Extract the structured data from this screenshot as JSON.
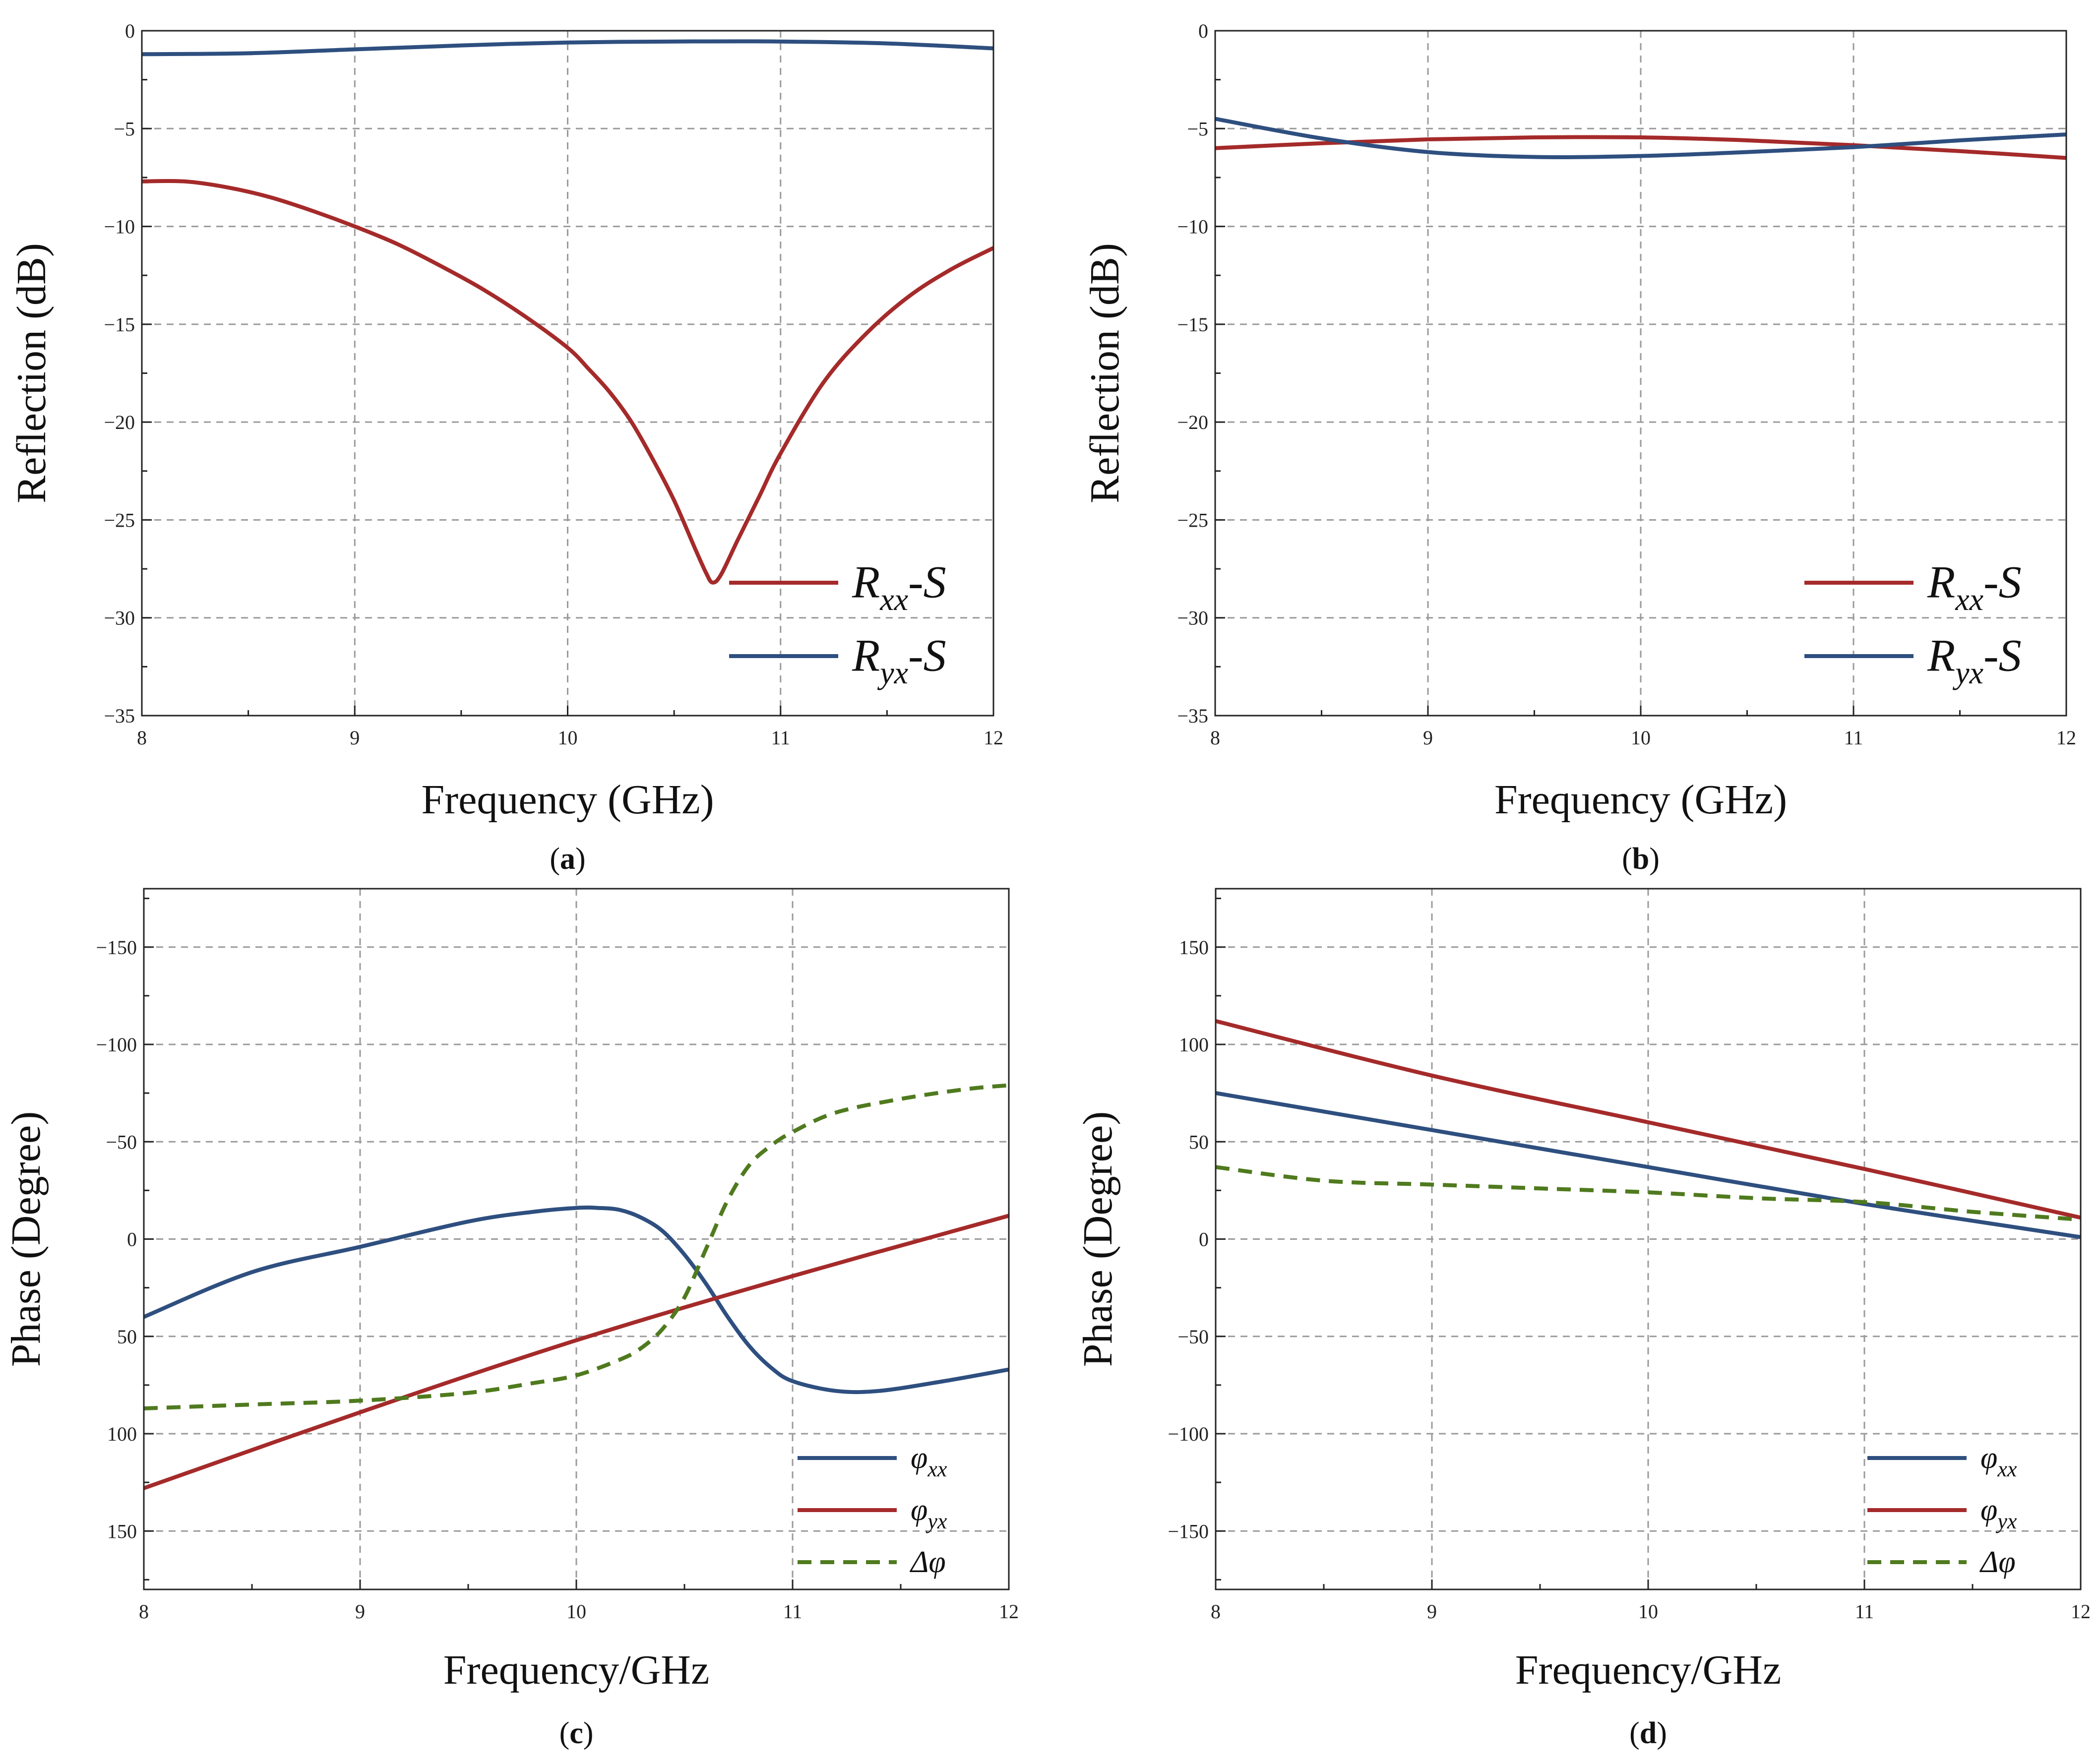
{
  "chart_data": [
    {
      "id": "a",
      "panel_label": "a",
      "type": "line",
      "xlabel": "Frequency (GHz)",
      "ylabel": "Reflection (dB)",
      "xlim": [
        8,
        12
      ],
      "ylim": [
        -35,
        0
      ],
      "y_inverted": false,
      "xticks": [
        "8",
        "9",
        "10",
        "11",
        "12"
      ],
      "yticks": [
        "0",
        "−5",
        "−10",
        "−15",
        "−20",
        "−25",
        "−30",
        "−35"
      ],
      "grid": true,
      "legend_position": "bottom-right",
      "series": [
        {
          "name": "Rxx-S",
          "legend": {
            "main": "R",
            "sub": "xx",
            "suffix": "-S"
          },
          "color": "#A52A2A",
          "dash": "solid",
          "x": [
            8.0,
            8.2,
            8.4,
            8.6,
            8.8,
            9.0,
            9.2,
            9.4,
            9.6,
            9.8,
            10.0,
            10.1,
            10.2,
            10.3,
            10.4,
            10.5,
            10.6,
            10.65,
            10.68,
            10.72,
            10.8,
            10.9,
            11.0,
            11.2,
            11.4,
            11.6,
            11.8,
            12.0
          ],
          "y": [
            -7.7,
            -7.7,
            -8.0,
            -8.5,
            -9.2,
            -10.0,
            -10.9,
            -12.0,
            -13.2,
            -14.6,
            -16.2,
            -17.3,
            -18.5,
            -20.0,
            -21.9,
            -24.0,
            -26.5,
            -27.7,
            -28.2,
            -27.8,
            -26.0,
            -23.8,
            -21.6,
            -18.0,
            -15.5,
            -13.6,
            -12.2,
            -11.1
          ]
        },
        {
          "name": "Ryx-S",
          "legend": {
            "main": "R",
            "sub": "yx",
            "suffix": "-S"
          },
          "color": "#2E4F7F",
          "dash": "solid",
          "x": [
            8.0,
            8.5,
            9.0,
            9.5,
            10.0,
            10.5,
            11.0,
            11.5,
            12.0
          ],
          "y": [
            -1.2,
            -1.15,
            -0.95,
            -0.75,
            -0.6,
            -0.55,
            -0.55,
            -0.65,
            -0.9
          ]
        }
      ]
    },
    {
      "id": "b",
      "panel_label": "b",
      "type": "line",
      "xlabel": "Frequency (GHz)",
      "ylabel": "Reflection (dB)",
      "xlim": [
        8,
        12
      ],
      "ylim": [
        -35,
        0
      ],
      "y_inverted": false,
      "xticks": [
        "8",
        "9",
        "10",
        "11",
        "12"
      ],
      "yticks": [
        "0",
        "−5",
        "−10",
        "−15",
        "−20",
        "−25",
        "−30",
        "−35"
      ],
      "grid": true,
      "legend_position": "bottom-right",
      "series": [
        {
          "name": "Rxx-S",
          "legend": {
            "main": "R",
            "sub": "xx",
            "suffix": "-S"
          },
          "color": "#A52A2A",
          "dash": "solid",
          "x": [
            8.0,
            8.5,
            9.0,
            9.5,
            10.0,
            10.5,
            11.0,
            11.5,
            12.0
          ],
          "y": [
            -6.0,
            -5.75,
            -5.55,
            -5.45,
            -5.45,
            -5.6,
            -5.85,
            -6.15,
            -6.5
          ]
        },
        {
          "name": "Ryx-S",
          "legend": {
            "main": "R",
            "sub": "yx",
            "suffix": "-S"
          },
          "color": "#2E4F7F",
          "dash": "solid",
          "x": [
            8.0,
            8.5,
            9.0,
            9.5,
            10.0,
            10.5,
            11.0,
            11.5,
            12.0
          ],
          "y": [
            -4.5,
            -5.5,
            -6.2,
            -6.45,
            -6.4,
            -6.2,
            -5.95,
            -5.6,
            -5.3
          ]
        }
      ]
    },
    {
      "id": "c",
      "panel_label": "c",
      "type": "line",
      "xlabel": "Frequency/GHz",
      "ylabel": "Phase (Degree)",
      "xlim": [
        8,
        12
      ],
      "ylim": [
        -180,
        180
      ],
      "y_inverted": true,
      "xticks": [
        "8",
        "9",
        "10",
        "11",
        "12"
      ],
      "yticks": [
        "−150",
        "−100",
        "−50",
        "0",
        "50",
        "100",
        "150"
      ],
      "grid": true,
      "legend_position": "bottom-right",
      "series": [
        {
          "name": "φxx",
          "legend": {
            "main": "φ",
            "sub": "xx",
            "suffix": ""
          },
          "color": "#2E4F7F",
          "dash": "solid",
          "x": [
            8.0,
            8.5,
            9.0,
            9.5,
            9.8,
            10.0,
            10.1,
            10.2,
            10.3,
            10.4,
            10.5,
            10.6,
            10.7,
            10.8,
            10.9,
            11.0,
            11.2,
            11.4,
            11.7,
            12.0
          ],
          "y": [
            40,
            17,
            4,
            -9,
            -14,
            -16,
            -16,
            -15,
            -11,
            -4,
            8,
            23,
            40,
            55,
            66,
            73,
            78,
            78,
            73,
            67
          ]
        },
        {
          "name": "φyx",
          "legend": {
            "main": "φ",
            "sub": "yx",
            "suffix": ""
          },
          "color": "#A52A2A",
          "dash": "solid",
          "x": [
            8.0,
            9.0,
            10.0,
            11.0,
            12.0
          ],
          "y": [
            128,
            89,
            52,
            19,
            -12
          ]
        },
        {
          "name": "Δφ",
          "legend": {
            "main": "Δφ",
            "sub": "",
            "suffix": ""
          },
          "color": "#4F7A1E",
          "dash": "dashed",
          "x": [
            8.0,
            8.5,
            9.0,
            9.5,
            9.8,
            10.0,
            10.2,
            10.3,
            10.4,
            10.5,
            10.6,
            10.7,
            10.8,
            10.9,
            11.0,
            11.2,
            11.5,
            11.8,
            12.0
          ],
          "y": [
            87,
            85,
            83,
            79,
            74,
            70,
            62,
            56,
            46,
            30,
            5,
            -20,
            -38,
            -48,
            -55,
            -65,
            -72,
            -77,
            -79
          ]
        }
      ]
    },
    {
      "id": "d",
      "panel_label": "d",
      "type": "line",
      "xlabel": "Frequency/GHz",
      "ylabel": "Phase (Degree)",
      "xlim": [
        8,
        12
      ],
      "ylim": [
        -180,
        180
      ],
      "y_inverted": false,
      "xticks": [
        "8",
        "9",
        "10",
        "11",
        "12"
      ],
      "yticks": [
        "150",
        "100",
        "50",
        "0",
        "−50",
        "−100",
        "−150"
      ],
      "grid": true,
      "legend_position": "bottom-right",
      "series": [
        {
          "name": "φxx",
          "legend": {
            "main": "φ",
            "sub": "xx",
            "suffix": ""
          },
          "color": "#2E4F7F",
          "dash": "solid",
          "x": [
            8.0,
            9.0,
            10.0,
            11.0,
            12.0
          ],
          "y": [
            75,
            56,
            37,
            18,
            1
          ]
        },
        {
          "name": "φyx",
          "legend": {
            "main": "φ",
            "sub": "yx",
            "suffix": ""
          },
          "color": "#A52A2A",
          "dash": "solid",
          "x": [
            8.0,
            9.0,
            10.0,
            11.0,
            12.0
          ],
          "y": [
            112,
            84,
            60,
            36,
            11
          ]
        },
        {
          "name": "Δφ",
          "legend": {
            "main": "Δφ",
            "sub": "",
            "suffix": ""
          },
          "color": "#4F7A1E",
          "dash": "dashed",
          "x": [
            8.0,
            8.5,
            9.0,
            9.5,
            10.0,
            10.5,
            11.0,
            11.5,
            12.0
          ],
          "y": [
            37,
            30,
            28,
            26,
            24,
            21,
            19,
            14,
            10
          ]
        }
      ]
    }
  ]
}
